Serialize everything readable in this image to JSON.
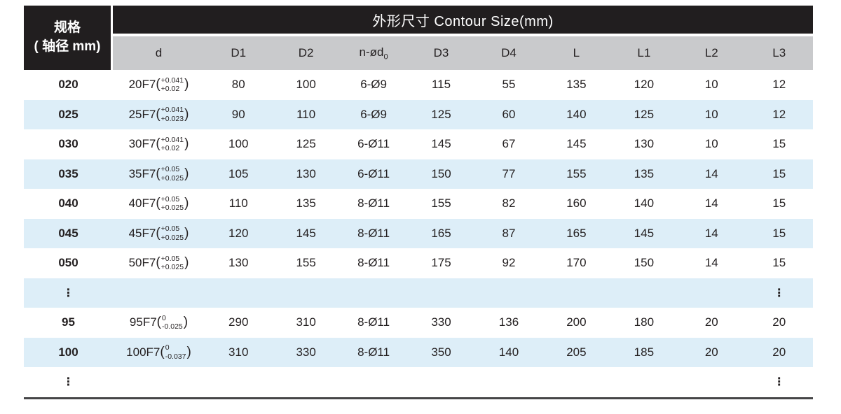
{
  "table": {
    "spec_header": {
      "line1": "规格",
      "line2": "( 轴径 mm)"
    },
    "title": "外形尺寸 Contour Size(mm)",
    "columns": [
      {
        "label": "d"
      },
      {
        "label": "D1"
      },
      {
        "label": "D2"
      },
      {
        "label": "n-ød",
        "sub": "0"
      },
      {
        "label": "D3"
      },
      {
        "label": "D4"
      },
      {
        "label": "L"
      },
      {
        "label": "L1"
      },
      {
        "label": "L2"
      },
      {
        "label": "L3"
      }
    ],
    "rows": [
      {
        "spec": "020",
        "d": {
          "base": "20F7",
          "tol_upper": "+0.041",
          "tol_lower": "+0.02"
        },
        "values": [
          "80",
          "100",
          "6-Ø9",
          "115",
          "55",
          "135",
          "120",
          "10",
          "12"
        ]
      },
      {
        "spec": "025",
        "d": {
          "base": "25F7",
          "tol_upper": "+0.041",
          "tol_lower": "+0.023"
        },
        "values": [
          "90",
          "110",
          "6-Ø9",
          "125",
          "60",
          "140",
          "125",
          "10",
          "12"
        ]
      },
      {
        "spec": "030",
        "d": {
          "base": "30F7",
          "tol_upper": "+0.041",
          "tol_lower": "+0.02"
        },
        "values": [
          "100",
          "125",
          "6-Ø11",
          "145",
          "67",
          "145",
          "130",
          "10",
          "15"
        ]
      },
      {
        "spec": "035",
        "d": {
          "base": "35F7",
          "tol_upper": "+0.05",
          "tol_lower": "+0.025"
        },
        "values": [
          "105",
          "130",
          "6-Ø11",
          "150",
          "77",
          "155",
          "135",
          "14",
          "15"
        ]
      },
      {
        "spec": "040",
        "d": {
          "base": "40F7",
          "tol_upper": "+0.05",
          "tol_lower": "+0.025"
        },
        "values": [
          "110",
          "135",
          "8-Ø11",
          "155",
          "82",
          "160",
          "140",
          "14",
          "15"
        ]
      },
      {
        "spec": "045",
        "d": {
          "base": "45F7",
          "tol_upper": "+0.05",
          "tol_lower": "+0.025"
        },
        "values": [
          "120",
          "145",
          "8-Ø11",
          "165",
          "87",
          "165",
          "145",
          "14",
          "15"
        ]
      },
      {
        "spec": "050",
        "d": {
          "base": "50F7",
          "tol_upper": "+0.05",
          "tol_lower": "+0.025"
        },
        "values": [
          "130",
          "155",
          "8-Ø11",
          "175",
          "92",
          "170",
          "150",
          "14",
          "15"
        ]
      },
      {
        "ellipsis": true,
        "symbol": "⋮"
      },
      {
        "spec": "95",
        "d": {
          "base": "95F7",
          "tol_upper": "0",
          "tol_lower": "-0.025"
        },
        "values": [
          "290",
          "310",
          "8-Ø11",
          "330",
          "136",
          "200",
          "180",
          "20",
          "20"
        ]
      },
      {
        "spec": "100",
        "d": {
          "base": "100F7",
          "tol_upper": "0",
          "tol_lower": "-0.037"
        },
        "values": [
          "310",
          "330",
          "8-Ø11",
          "350",
          "140",
          "205",
          "185",
          "20",
          "20"
        ]
      },
      {
        "ellipsis": true,
        "symbol": "⋮"
      }
    ],
    "colors": {
      "header_bg": "#211e1f",
      "header_text": "#ffffff",
      "subheader_bg": "#c9cacc",
      "stripe_bg": "#ddeef8",
      "text": "#231f20",
      "bottom_border": "#454547"
    }
  }
}
